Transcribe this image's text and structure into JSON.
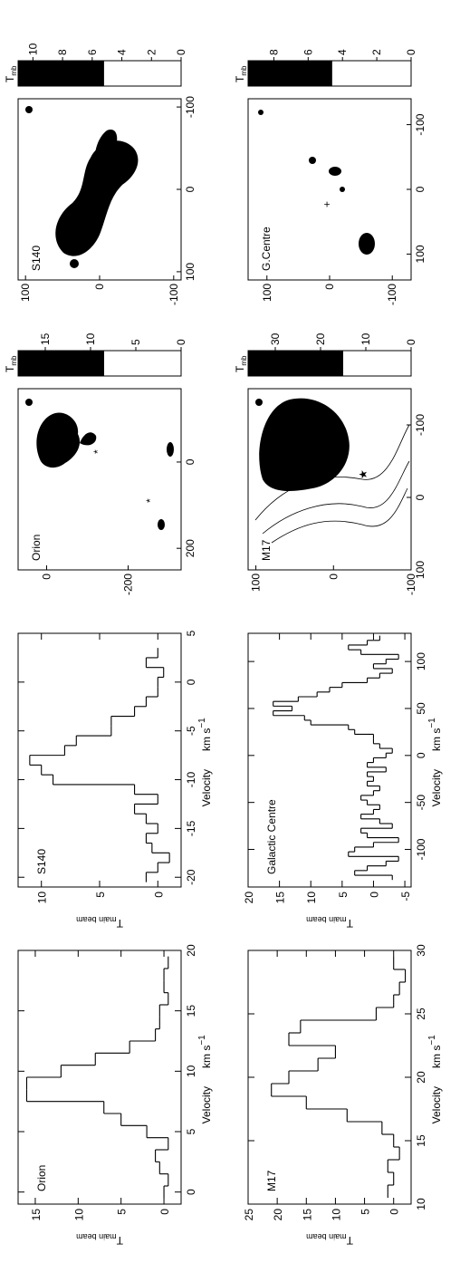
{
  "chart_data": [
    {
      "type": "map",
      "label": "Orion",
      "xlim": [
        250,
        -170
      ],
      "ylim": [
        -330,
        70
      ],
      "xticks": [
        200,
        0
      ],
      "yticks": [
        0,
        -200
      ],
      "colorbar": {
        "label": "T",
        "label_sub": "mb",
        "lim": [
          0,
          18
        ],
        "ticks": [
          0,
          5,
          10,
          15
        ],
        "threshold": 8.5
      }
    },
    {
      "type": "map",
      "label": "S140",
      "xlim": [
        110,
        -110
      ],
      "ylim": [
        -110,
        110
      ],
      "xticks": [
        100,
        0,
        -100
      ],
      "yticks": [
        100,
        0,
        -100
      ],
      "colorbar": {
        "label": "T",
        "label_sub": "mb",
        "lim": [
          0,
          11
        ],
        "ticks": [
          0,
          2,
          4,
          6,
          8,
          10
        ],
        "threshold": 5.2
      }
    },
    {
      "type": "map",
      "label": "M17",
      "xlim": [
        100,
        -150
      ],
      "ylim": [
        -100,
        110
      ],
      "xticks": [
        100,
        0,
        -100
      ],
      "yticks": [
        100,
        0,
        -100
      ],
      "colorbar": {
        "label": "T",
        "label_sub": "mb",
        "lim": [
          0,
          36
        ],
        "ticks": [
          0,
          10,
          20,
          30
        ],
        "threshold": 15
      }
    },
    {
      "type": "map",
      "label": "G.Centre",
      "xlim": [
        140,
        -140
      ],
      "ylim": [
        -130,
        130
      ],
      "xticks": [
        100,
        0,
        -100
      ],
      "yticks": [
        100,
        0,
        -100
      ],
      "colorbar": {
        "label": "T",
        "label_sub": "mb",
        "lim": [
          0,
          9.5
        ],
        "ticks": [
          0,
          2,
          4,
          6,
          8
        ],
        "threshold": 4.6
      }
    },
    {
      "type": "step",
      "label": "Orion",
      "x": [
        0,
        1,
        2,
        3,
        4,
        5,
        6,
        7,
        8,
        9,
        10,
        11,
        12,
        13,
        14,
        15,
        16,
        17,
        18,
        19
      ],
      "values": [
        0,
        -0.5,
        0.5,
        1,
        -0.5,
        2,
        5,
        7,
        16,
        16,
        12,
        8,
        4,
        1,
        0.5,
        0.5,
        -0.5,
        0,
        0,
        -0.5
      ],
      "xlim": [
        -1,
        20
      ],
      "ylim": [
        -2,
        17
      ],
      "xticks": [
        0,
        5,
        10,
        15,
        20
      ],
      "yticks": [
        0,
        5,
        10,
        15
      ],
      "xlabel": "Velocity",
      "xunit": "km s",
      "xunit_sup": "−1",
      "ylabel": "T",
      "ylabel_sub": "main beam"
    },
    {
      "type": "step",
      "label": "S140",
      "x": [
        -20,
        -19,
        -18,
        -17,
        -16,
        -15,
        -14,
        -13,
        -12,
        -11,
        -10,
        -9,
        -8,
        -7,
        -6,
        -5,
        -4,
        -3,
        -2,
        -1,
        0,
        1,
        2,
        3
      ],
      "values": [
        1,
        0,
        -1,
        0.5,
        1,
        0,
        1,
        2,
        0,
        2,
        9,
        10,
        11,
        8,
        7,
        4,
        4,
        2,
        1,
        0,
        0,
        -0.5,
        1,
        0
      ],
      "xlim": [
        -21,
        5
      ],
      "ylim": [
        -2,
        12
      ],
      "xticks": [
        -20,
        -15,
        -10,
        -5,
        0,
        5
      ],
      "yticks": [
        0,
        5,
        10
      ],
      "xlabel": "Velocity",
      "xunit": "km s",
      "xunit_sup": "−1",
      "ylabel": "T",
      "ylabel_sub": "main beam"
    },
    {
      "type": "step",
      "label": "M17",
      "x": [
        11,
        12,
        13,
        14,
        15,
        16,
        17,
        18,
        19,
        20,
        21,
        22,
        23,
        24,
        25,
        26,
        27,
        28,
        29
      ],
      "values": [
        1,
        0,
        1,
        -1,
        0,
        2,
        8,
        15,
        21,
        18,
        13,
        10,
        18,
        16,
        3,
        0,
        -1,
        -2,
        0
      ],
      "xlim": [
        10,
        30
      ],
      "ylim": [
        -3,
        25
      ],
      "xticks": [
        10,
        15,
        20,
        25,
        30
      ],
      "yticks": [
        0,
        5,
        10,
        15,
        20,
        25
      ],
      "xlabel": "Velocity",
      "xunit": "km s",
      "xunit_sup": "−1",
      "ylabel": "T",
      "ylabel_sub": "main beam"
    },
    {
      "type": "step",
      "label": "Galactic Centre",
      "x": [
        -130,
        -125,
        -120,
        -115,
        -110,
        -105,
        -100,
        -95,
        -90,
        -85,
        -80,
        -75,
        -70,
        -65,
        -60,
        -55,
        -50,
        -45,
        -40,
        -35,
        -30,
        -25,
        -20,
        -15,
        -10,
        -5,
        0,
        5,
        10,
        15,
        20,
        25,
        30,
        35,
        40,
        45,
        50,
        55,
        60,
        65,
        70,
        75,
        80,
        85,
        90,
        95,
        100,
        105,
        110,
        115,
        120,
        125
      ],
      "values": [
        -3,
        3,
        1,
        -2,
        -4,
        4,
        3,
        0,
        -4,
        1,
        2,
        -3,
        -1,
        2,
        0,
        -1,
        1,
        2,
        0,
        -1,
        1,
        0,
        1,
        -2,
        1,
        0,
        -2,
        -3,
        -1,
        0,
        0,
        3,
        4,
        10,
        11,
        16,
        13,
        16,
        12,
        9,
        7,
        5,
        1,
        -1,
        -3,
        0,
        -2,
        -4,
        2,
        4,
        1,
        -1
      ],
      "xlim": [
        -140,
        130
      ],
      "ylim": [
        -6,
        20
      ],
      "xticks": [
        -100,
        -50,
        0,
        50,
        100
      ],
      "yticks": [
        -5,
        0,
        5,
        10,
        15,
        20
      ],
      "xlabel": "Velocity",
      "xunit": "km s",
      "xunit_sup": "−1",
      "ylabel": "T",
      "ylabel_sub": "main beam"
    }
  ]
}
